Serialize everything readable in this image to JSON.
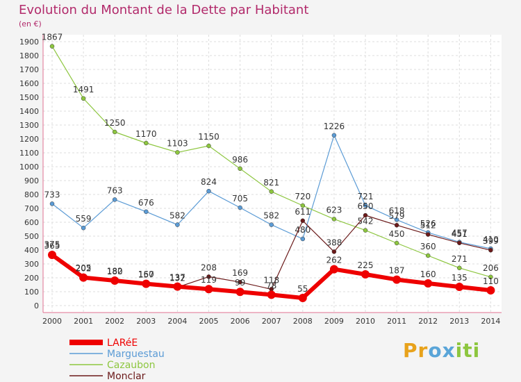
{
  "header": {
    "title": "Evolution du Montant de la Dette par Habitant",
    "unit": "(en €)"
  },
  "logo": {
    "text": "Proxiti"
  },
  "chart_data": {
    "type": "line",
    "title": "Evolution du Montant de la Dette par Habitant",
    "ylabel": "(en €)",
    "xlabel": "",
    "ylim": [
      0,
      1900
    ],
    "yticks": [
      0,
      100,
      200,
      300,
      400,
      500,
      600,
      700,
      800,
      900,
      1000,
      1100,
      1200,
      1300,
      1400,
      1500,
      1600,
      1700,
      1800,
      1900
    ],
    "categories": [
      "2000",
      "2001",
      "2002",
      "2003",
      "2004",
      "2005",
      "2006",
      "2007",
      "2008",
      "2009",
      "2010",
      "2011",
      "2012",
      "2013",
      "2014"
    ],
    "grid": true,
    "legend_position": "bottom-left",
    "series": [
      {
        "name": "LARéE",
        "color": "#ee0000",
        "values": [
          365,
          202,
          180,
          157,
          137,
          119,
          99,
          78,
          55,
          262,
          225,
          187,
          160,
          135,
          110
        ]
      },
      {
        "name": "Marguestau",
        "color": "#5b9bd5",
        "values": [
          733,
          559,
          763,
          676,
          582,
          824,
          705,
          582,
          480,
          1226,
          721,
          618,
          526,
          457,
          410
        ]
      },
      {
        "name": "Cazaubon",
        "color": "#8dc63f",
        "values": [
          1867,
          1491,
          1250,
          1170,
          1103,
          1150,
          986,
          821,
          720,
          623,
          542,
          450,
          360,
          271,
          206
        ]
      },
      {
        "name": "Monclar",
        "color": "#6b1a1a",
        "values": [
          375,
          205,
          182,
          160,
          132,
          208,
          169,
          118,
          611,
          388,
          650,
          579,
          512,
          451,
          399
        ]
      }
    ]
  }
}
